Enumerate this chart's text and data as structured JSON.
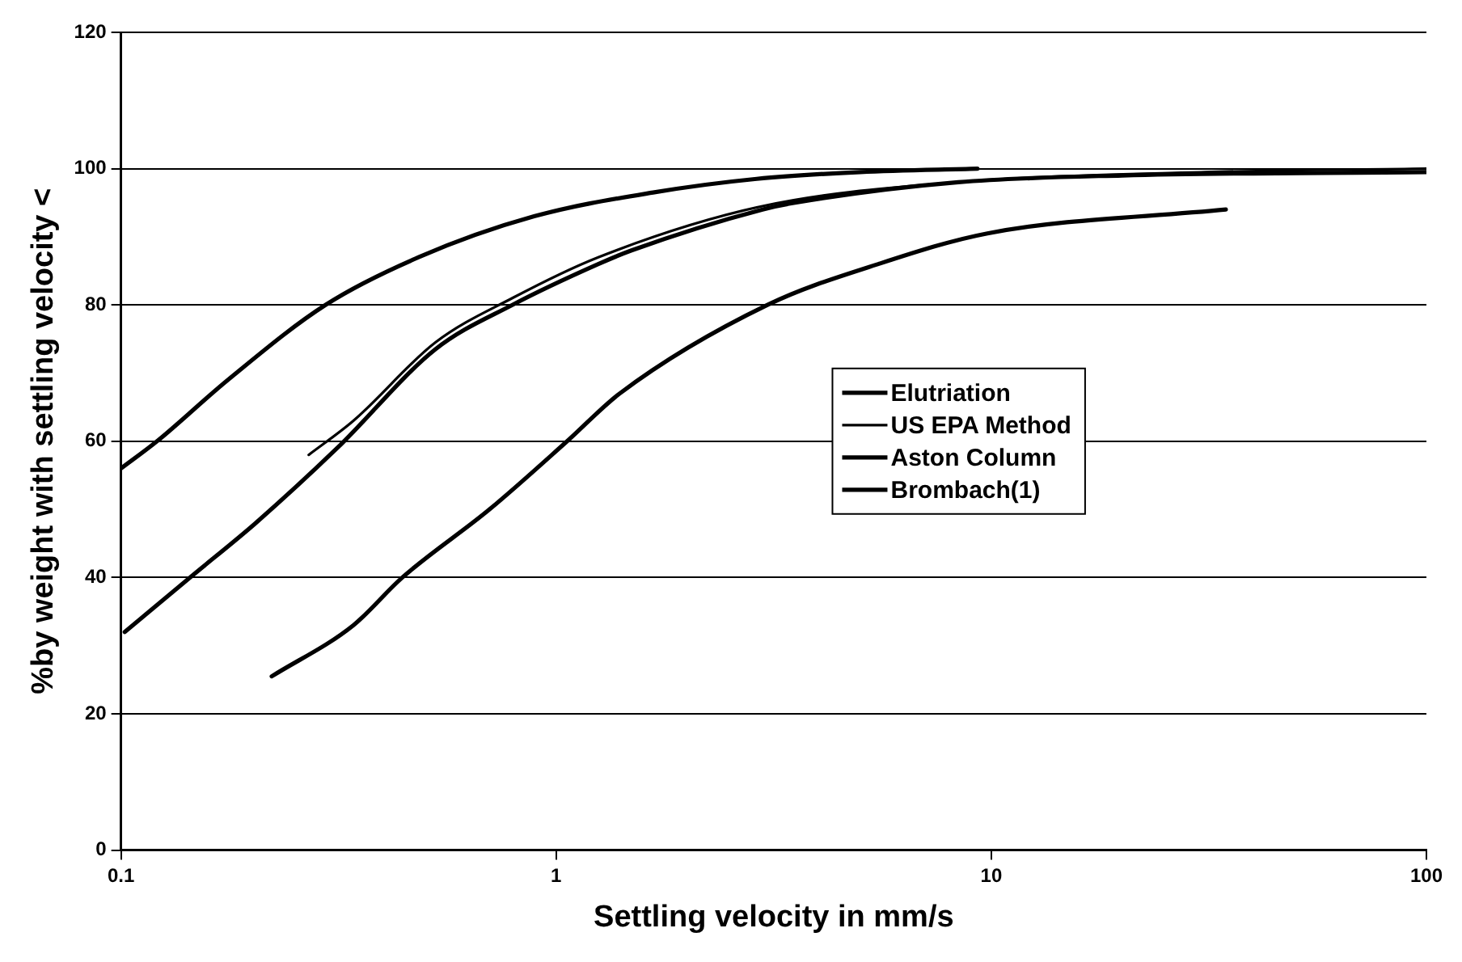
{
  "chart_data": {
    "type": "line",
    "xlabel": "Settling velocity in mm/s",
    "ylabel": "%by weight with settling velocity <",
    "log": "x",
    "xlim": [
      0.1,
      100
    ],
    "xticks": [
      0.1,
      1,
      10,
      100
    ],
    "ylim": [
      0,
      120
    ],
    "yticks": [
      0,
      20,
      40,
      60,
      80,
      100,
      120
    ],
    "grid": "y",
    "legend": "right",
    "marker": "none",
    "line_style": "solid",
    "series": [
      {
        "name": "Elutriation",
        "color": "#000000",
        "x": [
          0.102,
          0.144,
          0.204,
          0.314,
          0.528,
          0.793,
          1.25,
          1.49,
          2.98,
          3.54,
          8.4,
          20,
          100
        ],
        "values": [
          32,
          40,
          48,
          59,
          73.5,
          80,
          86,
          88,
          94,
          95,
          98,
          99,
          99.5
        ]
      },
      {
        "name": "US EPA Method",
        "color": "#000000",
        "x": [
          0.27,
          0.342,
          0.528,
          0.793,
          1.25,
          2.98,
          8.4,
          31,
          100
        ],
        "values": [
          58,
          63,
          74.5,
          81,
          87,
          94.5,
          98,
          99.5,
          100
        ]
      },
      {
        "name": "Aston Column",
        "color": "#000000",
        "x": [
          0.1,
          0.121,
          0.176,
          0.295,
          0.483,
          0.89,
          1.67,
          2.89,
          5.0,
          9.3
        ],
        "values": [
          56,
          60,
          69,
          80,
          87,
          93,
          96.5,
          98.5,
          99.5,
          100
        ]
      },
      {
        "name": "Brombach(1)",
        "color": "#000000",
        "x": [
          0.222,
          0.342,
          0.443,
          0.703,
          1.06,
          1.4,
          3.06,
          5.5,
          9.8,
          34.6
        ],
        "values": [
          25.5,
          33,
          40,
          50,
          60,
          67,
          80,
          86,
          90.5,
          94
        ]
      }
    ]
  }
}
